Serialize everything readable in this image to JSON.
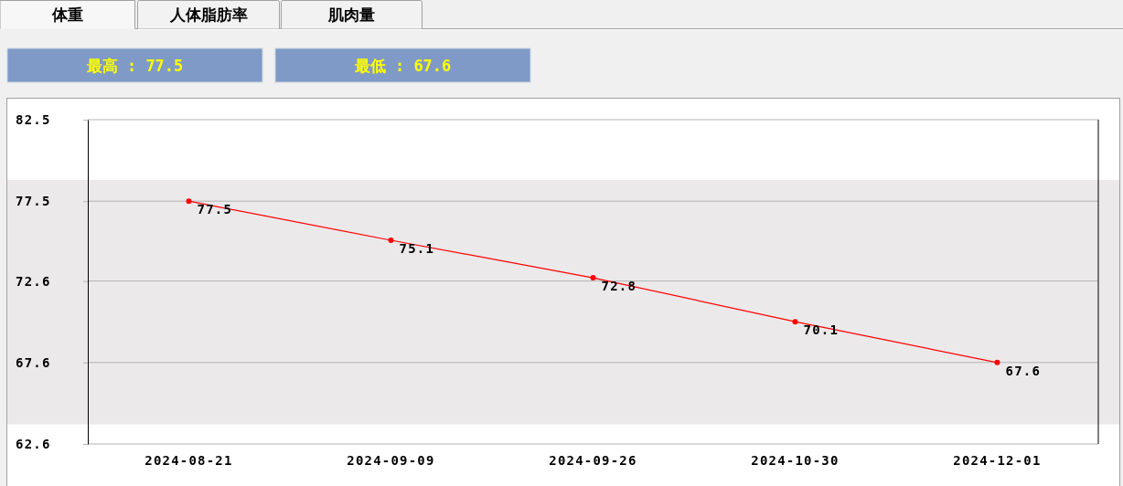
{
  "chart_data": {
    "type": "line",
    "title": "体重",
    "annotations": [
      "人体脂肪率",
      "肌肉量",
      "最高 : 77.5",
      "最低 : 67.6"
    ],
    "categories": [
      "2024-08-21",
      "2024-09-09",
      "2024-09-26",
      "2024-10-30",
      "2024-12-01"
    ],
    "series": [
      {
        "color": "#ff0000",
        "values": [
          77.5,
          75.1,
          72.8,
          70.1,
          67.6
        ]
      }
    ],
    "ylim": [
      62.6,
      82.5
    ],
    "yticks": [
      62.6,
      67.6,
      72.6,
      77.5,
      82.5
    ],
    "grid": "y",
    "marker": "circle",
    "line_style": "solid",
    "data_labels": true,
    "bands": [
      {
        "axis": "y",
        "from": 63.8,
        "to": 78.8,
        "color": "#ebe9ea"
      }
    ]
  }
}
